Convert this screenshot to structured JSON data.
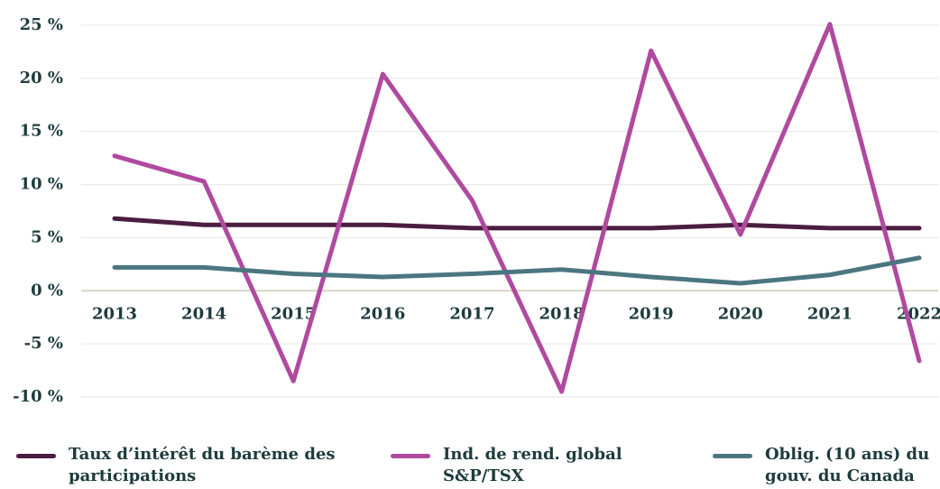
{
  "chart_data": {
    "type": "line",
    "categories": [
      "2013",
      "2014",
      "2015",
      "2016",
      "2017",
      "2018",
      "2019",
      "2020",
      "2021",
      "2022"
    ],
    "series": [
      {
        "name": "Taux d’intérêt du barème des participations",
        "color": "#4b1d40",
        "values": [
          6.8,
          6.2,
          6.2,
          6.2,
          5.9,
          5.9,
          5.9,
          6.2,
          5.9,
          5.9
        ]
      },
      {
        "name": "Ind. de rend. global S&P/TSX",
        "color": "#b04a9f",
        "values": [
          12.7,
          10.3,
          -8.5,
          20.4,
          8.5,
          -9.5,
          22.6,
          5.3,
          25.1,
          -6.6
        ]
      },
      {
        "name": "Oblig. (10 ans) du gouv. du Canada",
        "color": "#4b7680",
        "values": [
          2.2,
          2.2,
          1.6,
          1.3,
          1.6,
          2.0,
          1.3,
          0.7,
          1.5,
          3.1
        ]
      }
    ],
    "ylim": [
      -11.5,
      26
    ],
    "yticks": [
      {
        "value": -10,
        "label": "-10 %"
      },
      {
        "value": -5,
        "label": "-5 %"
      },
      {
        "value": 0,
        "label": "0 %"
      },
      {
        "value": 5,
        "label": "5 %"
      },
      {
        "value": 10,
        "label": "10 %"
      },
      {
        "value": 15,
        "label": "15 %"
      },
      {
        "value": 20,
        "label": "20 %"
      },
      {
        "value": 25,
        "label": "25 %"
      }
    ],
    "grid": true
  }
}
